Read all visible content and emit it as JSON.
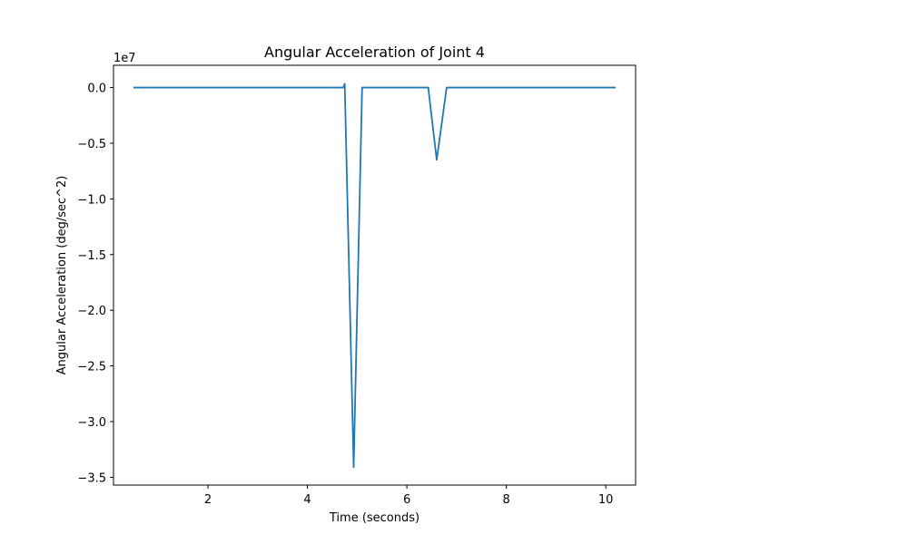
{
  "chart_data": {
    "type": "line",
    "title": "Angular Acceleration of Joint 4",
    "xlabel": "Time (seconds)",
    "ylabel": "Angular Acceleration (deg/sec^2)",
    "y_offset_label": "1e7",
    "xlim": [
      0.1,
      10.6
    ],
    "ylim": [
      -35700000,
      2000000
    ],
    "x_ticks": [
      2,
      4,
      6,
      8,
      10
    ],
    "x_tick_labels": [
      "2",
      "4",
      "6",
      "8",
      "10"
    ],
    "y_ticks": [
      0,
      -5000000,
      -10000000,
      -15000000,
      -20000000,
      -25000000,
      -30000000,
      -35000000
    ],
    "y_tick_labels": [
      "0.0",
      "−0.5",
      "−1.0",
      "−1.5",
      "−2.0",
      "−2.5",
      "−3.0",
      "−3.5"
    ],
    "grid": false,
    "legend": "none",
    "color": "#1f77b4",
    "series": [
      {
        "x": [
          0.5,
          4.5,
          4.72,
          4.75,
          4.93,
          5.1,
          6.0,
          6.43,
          6.6,
          6.8,
          10.2
        ],
        "y": [
          0,
          0,
          0,
          350000,
          -34100000,
          0,
          0,
          0,
          -6500000,
          0,
          0
        ]
      }
    ]
  }
}
